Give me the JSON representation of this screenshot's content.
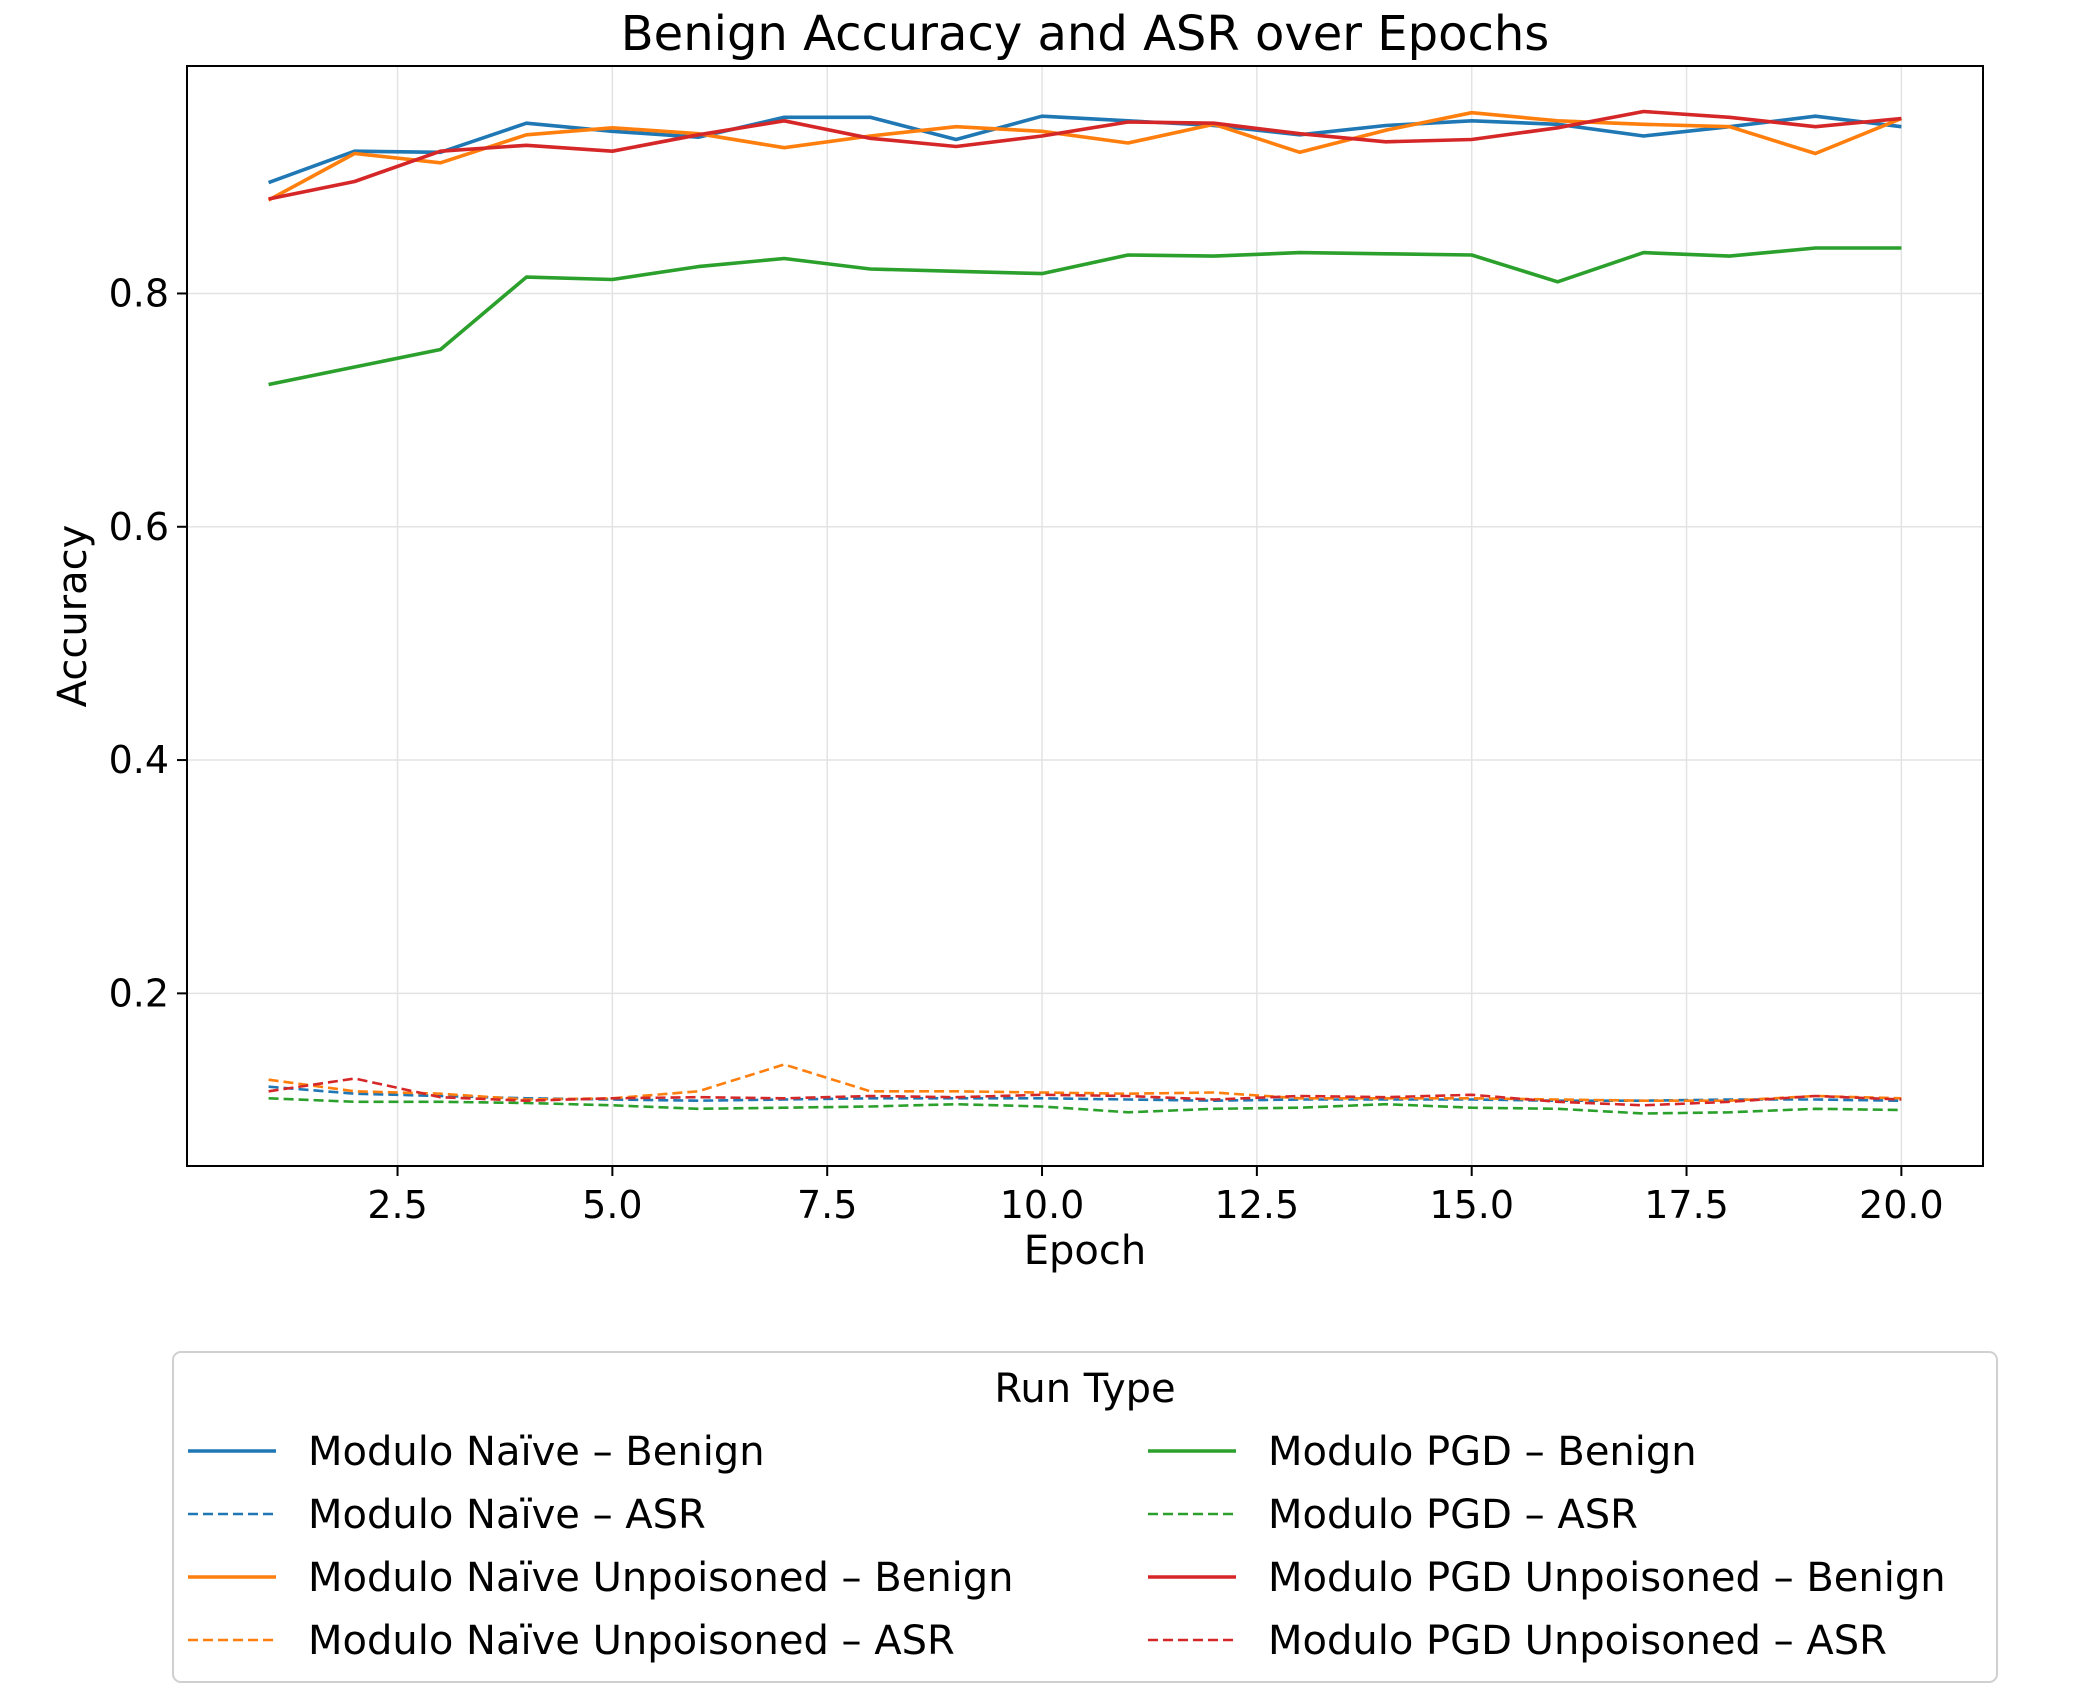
{
  "chart_data": {
    "type": "line",
    "title": "Benign Accuracy and ASR over Epochs",
    "xlabel": "Epoch",
    "ylabel": "Accuracy",
    "xlim": [
      0.05,
      20.95
    ],
    "ylim": [
      0.052,
      0.995
    ],
    "xticks": [
      2.5,
      5.0,
      7.5,
      10.0,
      12.5,
      15.0,
      17.5,
      20.0
    ],
    "xtick_labels": [
      "2.5",
      "5.0",
      "7.5",
      "10.0",
      "12.5",
      "15.0",
      "17.5",
      "20.0"
    ],
    "yticks": [
      0.2,
      0.4,
      0.6,
      0.8
    ],
    "ytick_labels": [
      "0.2",
      "0.4",
      "0.6",
      "0.8"
    ],
    "grid": true,
    "legend": {
      "title": "Run Type",
      "placement": "below plot",
      "columns": 2
    },
    "x": [
      1,
      2,
      3,
      4,
      5,
      6,
      7,
      8,
      9,
      10,
      11,
      12,
      13,
      14,
      15,
      16,
      17,
      18,
      19,
      20
    ],
    "series": [
      {
        "name": "Modulo Naïve – Benign",
        "color": "#1f77b4",
        "dash": "solid",
        "values": [
          0.895,
          0.922,
          0.921,
          0.946,
          0.939,
          0.934,
          0.951,
          0.951,
          0.932,
          0.952,
          0.948,
          0.944,
          0.936,
          0.944,
          0.948,
          0.945,
          0.935,
          0.943,
          0.952,
          0.943
        ]
      },
      {
        "name": "Modulo Naïve – ASR",
        "color": "#1f77b4",
        "dash": "dashed",
        "values": [
          0.12,
          0.114,
          0.112,
          0.11,
          0.109,
          0.108,
          0.109,
          0.11,
          0.11,
          0.11,
          0.109,
          0.108,
          0.109,
          0.109,
          0.109,
          0.108,
          0.108,
          0.109,
          0.109,
          0.108
        ]
      },
      {
        "name": "Modulo Naïve Unpoisoned  – Benign",
        "color": "#ff7f0e",
        "dash": "solid",
        "values": [
          0.88,
          0.92,
          0.912,
          0.936,
          0.942,
          0.937,
          0.925,
          0.935,
          0.943,
          0.939,
          0.929,
          0.945,
          0.921,
          0.94,
          0.955,
          0.948,
          0.945,
          0.943,
          0.92,
          0.95
        ]
      },
      {
        "name": "Modulo Naïve Unpoisoned  – ASR",
        "color": "#ff7f0e",
        "dash": "dashed",
        "values": [
          0.126,
          0.116,
          0.114,
          0.109,
          0.11,
          0.116,
          0.139,
          0.116,
          0.116,
          0.115,
          0.114,
          0.115,
          0.11,
          0.11,
          0.11,
          0.109,
          0.108,
          0.108,
          0.112,
          0.11
        ]
      },
      {
        "name": "Modulo PGD – Benign",
        "color": "#2ca02c",
        "dash": "solid",
        "values": [
          0.722,
          0.737,
          0.752,
          0.814,
          0.812,
          0.823,
          0.83,
          0.821,
          0.819,
          0.817,
          0.833,
          0.832,
          0.835,
          0.834,
          0.833,
          0.81,
          0.835,
          0.832,
          0.839,
          0.839
        ]
      },
      {
        "name": "Modulo PGD – ASR",
        "color": "#2ca02c",
        "dash": "dashed",
        "values": [
          0.11,
          0.107,
          0.107,
          0.106,
          0.104,
          0.101,
          0.102,
          0.103,
          0.105,
          0.103,
          0.098,
          0.101,
          0.102,
          0.105,
          0.102,
          0.101,
          0.097,
          0.098,
          0.101,
          0.1
        ]
      },
      {
        "name": "Modulo PGD Unpoisoned – Benign",
        "color": "#d62728",
        "dash": "solid",
        "values": [
          0.881,
          0.896,
          0.922,
          0.927,
          0.922,
          0.936,
          0.948,
          0.933,
          0.926,
          0.935,
          0.947,
          0.946,
          0.937,
          0.93,
          0.932,
          0.942,
          0.956,
          0.951,
          0.943,
          0.95
        ]
      },
      {
        "name": "Modulo PGD Unpoisoned – ASR",
        "color": "#d62728",
        "dash": "dashed",
        "values": [
          0.116,
          0.127,
          0.111,
          0.108,
          0.11,
          0.111,
          0.11,
          0.112,
          0.111,
          0.113,
          0.112,
          0.109,
          0.112,
          0.111,
          0.113,
          0.107,
          0.104,
          0.107,
          0.112,
          0.109
        ]
      }
    ]
  }
}
